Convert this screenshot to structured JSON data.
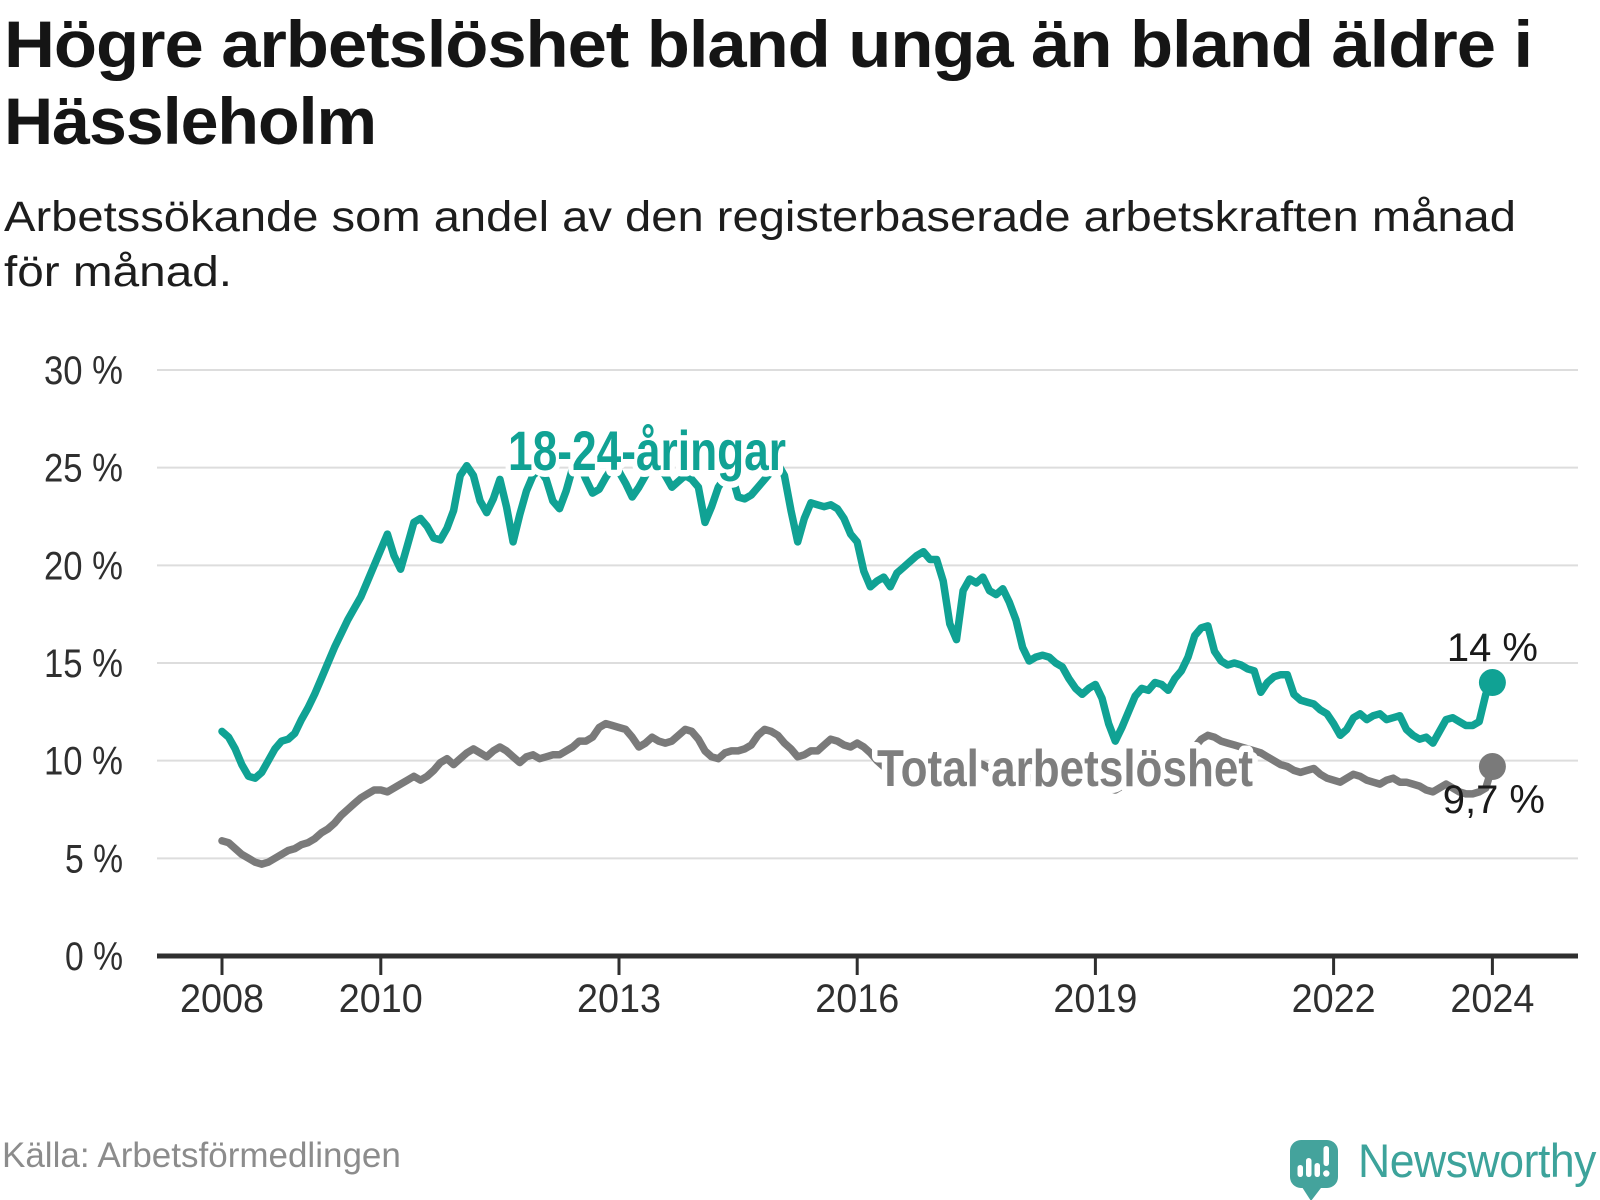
{
  "header": {
    "title_lines": [
      "Högre arbetslöshet bland unga än bland äldre i",
      "Hässleholm"
    ],
    "subtitle_lines": [
      "Arbetssökande som andel av den registerbaserade arbetskraften månad",
      "för månad."
    ]
  },
  "footer": {
    "source": "Källa: Arbetsförmedlingen",
    "brand": "Newsworthy",
    "brand_icon": "newsworthy-pin-barchart-icon",
    "brand_color": "#3DA39B"
  },
  "chart_data": {
    "type": "line",
    "x_unit": "month",
    "x_start": "2008-01",
    "x_end": "2024-01",
    "x_ticks": [
      2008,
      2010,
      2013,
      2016,
      2019,
      2022,
      2024
    ],
    "y_ticks": [
      0,
      5,
      10,
      15,
      20,
      25,
      30
    ],
    "y_tick_suffix": " %",
    "ylim": [
      0,
      30
    ],
    "grid": "horizontal",
    "legend_position": "inline-labels",
    "colors": {
      "axis": "#2F2F2F",
      "grid": "#DDDDDD",
      "tick_label": "#2F2F2F"
    },
    "series": [
      {
        "name": "18-24-åringar",
        "color": "#10A294",
        "end_label": "14 %",
        "end_value": 14.0,
        "values": [
          11.5,
          11.2,
          10.6,
          9.8,
          9.2,
          9.1,
          9.4,
          10.0,
          10.6,
          11.0,
          11.1,
          11.4,
          12.1,
          12.7,
          13.4,
          14.2,
          15.0,
          15.8,
          16.5,
          17.2,
          17.8,
          18.4,
          19.2,
          20.0,
          20.8,
          21.6,
          20.5,
          19.8,
          21.0,
          22.2,
          22.4,
          22.0,
          21.4,
          21.3,
          21.9,
          22.8,
          24.6,
          25.1,
          24.6,
          23.3,
          22.7,
          23.4,
          24.4,
          23.0,
          21.2,
          22.6,
          23.8,
          24.6,
          24.9,
          24.4,
          23.3,
          22.9,
          23.8,
          25.0,
          25.2,
          24.4,
          23.7,
          23.9,
          24.5,
          25.0,
          24.8,
          24.2,
          23.5,
          24.0,
          24.6,
          25.3,
          25.2,
          24.6,
          24.0,
          24.3,
          24.6,
          24.4,
          24.0,
          22.2,
          23.0,
          24.0,
          24.5,
          24.7,
          23.5,
          23.4,
          23.6,
          24.0,
          24.4,
          24.8,
          25.2,
          24.6,
          22.8,
          21.2,
          22.4,
          23.2,
          23.1,
          23.0,
          23.1,
          22.9,
          22.4,
          21.6,
          21.2,
          19.7,
          18.9,
          19.2,
          19.4,
          18.9,
          19.6,
          19.9,
          20.2,
          20.5,
          20.7,
          20.3,
          20.3,
          19.2,
          17.0,
          16.2,
          18.7,
          19.3,
          19.1,
          19.4,
          18.7,
          18.5,
          18.8,
          18.1,
          17.2,
          15.8,
          15.1,
          15.3,
          15.4,
          15.3,
          15.0,
          14.8,
          14.2,
          13.7,
          13.4,
          13.7,
          13.9,
          13.2,
          11.9,
          11.0,
          11.7,
          12.5,
          13.3,
          13.7,
          13.6,
          14.0,
          13.9,
          13.6,
          14.2,
          14.6,
          15.3,
          16.4,
          16.8,
          16.9,
          15.6,
          15.1,
          14.9,
          15.0,
          14.9,
          14.7,
          14.6,
          13.5,
          14.0,
          14.3,
          14.4,
          14.4,
          13.4,
          13.1,
          13.0,
          12.9,
          12.6,
          12.4,
          11.9,
          11.3,
          11.6,
          12.2,
          12.4,
          12.1,
          12.3,
          12.4,
          12.1,
          12.2,
          12.3,
          11.6,
          11.3,
          11.1,
          11.2,
          10.9,
          11.5,
          12.1,
          12.2,
          12.0,
          11.8,
          11.8,
          12.0,
          13.4,
          14.0
        ]
      },
      {
        "name": "Total arbetslöshet",
        "color": "#7A7A7A",
        "end_label": "9,7 %",
        "end_value": 9.7,
        "values": [
          5.9,
          5.8,
          5.5,
          5.2,
          5.0,
          4.8,
          4.7,
          4.8,
          5.0,
          5.2,
          5.4,
          5.5,
          5.7,
          5.8,
          6.0,
          6.3,
          6.5,
          6.8,
          7.2,
          7.5,
          7.8,
          8.1,
          8.3,
          8.5,
          8.5,
          8.4,
          8.6,
          8.8,
          9.0,
          9.2,
          9.0,
          9.2,
          9.5,
          9.9,
          10.1,
          9.8,
          10.1,
          10.4,
          10.6,
          10.4,
          10.2,
          10.5,
          10.7,
          10.5,
          10.2,
          9.9,
          10.2,
          10.3,
          10.1,
          10.2,
          10.3,
          10.3,
          10.5,
          10.7,
          11.0,
          11.0,
          11.2,
          11.7,
          11.9,
          11.8,
          11.7,
          11.6,
          11.2,
          10.7,
          10.9,
          11.2,
          11.0,
          10.9,
          11.0,
          11.3,
          11.6,
          11.5,
          11.1,
          10.5,
          10.2,
          10.1,
          10.4,
          10.5,
          10.5,
          10.6,
          10.8,
          11.3,
          11.6,
          11.5,
          11.3,
          10.9,
          10.6,
          10.2,
          10.3,
          10.5,
          10.5,
          10.8,
          11.1,
          11.0,
          10.8,
          10.7,
          10.9,
          10.7,
          10.4,
          10.0,
          9.7,
          9.7,
          9.8,
          10.0,
          10.1,
          10.0,
          9.9,
          9.8,
          9.9,
          9.8,
          9.6,
          9.5,
          9.6,
          9.8,
          9.9,
          9.8,
          9.6,
          9.5,
          9.6,
          9.5,
          9.4,
          9.2,
          9.1,
          9.2,
          9.4,
          9.7,
          9.8,
          9.5,
          9.2,
          9.0,
          9.1,
          9.2,
          9.1,
          8.9,
          8.6,
          8.5,
          8.7,
          8.9,
          9.1,
          9.2,
          9.1,
          9.0,
          8.9,
          9.1,
          9.3,
          9.4,
          9.9,
          10.7,
          11.1,
          11.3,
          11.2,
          11.0,
          10.9,
          10.8,
          10.7,
          10.6,
          10.5,
          10.4,
          10.2,
          10.0,
          9.8,
          9.7,
          9.5,
          9.4,
          9.5,
          9.6,
          9.3,
          9.1,
          9.0,
          8.9,
          9.1,
          9.3,
          9.2,
          9.0,
          8.9,
          8.8,
          9.0,
          9.1,
          8.9,
          8.9,
          8.8,
          8.7,
          8.5,
          8.4,
          8.6,
          8.8,
          8.6,
          8.4,
          8.3,
          8.3,
          8.4,
          8.6,
          9.7
        ]
      }
    ]
  }
}
